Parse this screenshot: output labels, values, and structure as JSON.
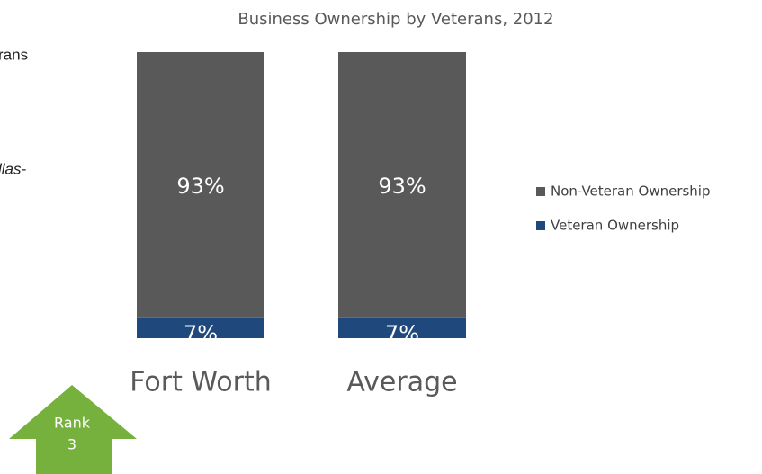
{
  "fragments": [
    "rans",
    "llas-"
  ],
  "badge": {
    "label": "Rank",
    "rank": "3"
  },
  "chart_data": {
    "type": "stacked_bar",
    "title": "Business Ownership by Veterans, 2012",
    "categories": [
      "Fort Worth",
      "Average"
    ],
    "series": [
      {
        "name": "Non-Veteran Ownership",
        "color": "#595959",
        "values": [
          93,
          93
        ],
        "value_labels": [
          "93%",
          "93%"
        ]
      },
      {
        "name": "Veteran Ownership",
        "color": "#1f497d",
        "values": [
          7,
          7
        ],
        "value_labels": [
          "7%",
          "7%"
        ]
      }
    ],
    "ylim": [
      0,
      100
    ],
    "legend": "right"
  }
}
